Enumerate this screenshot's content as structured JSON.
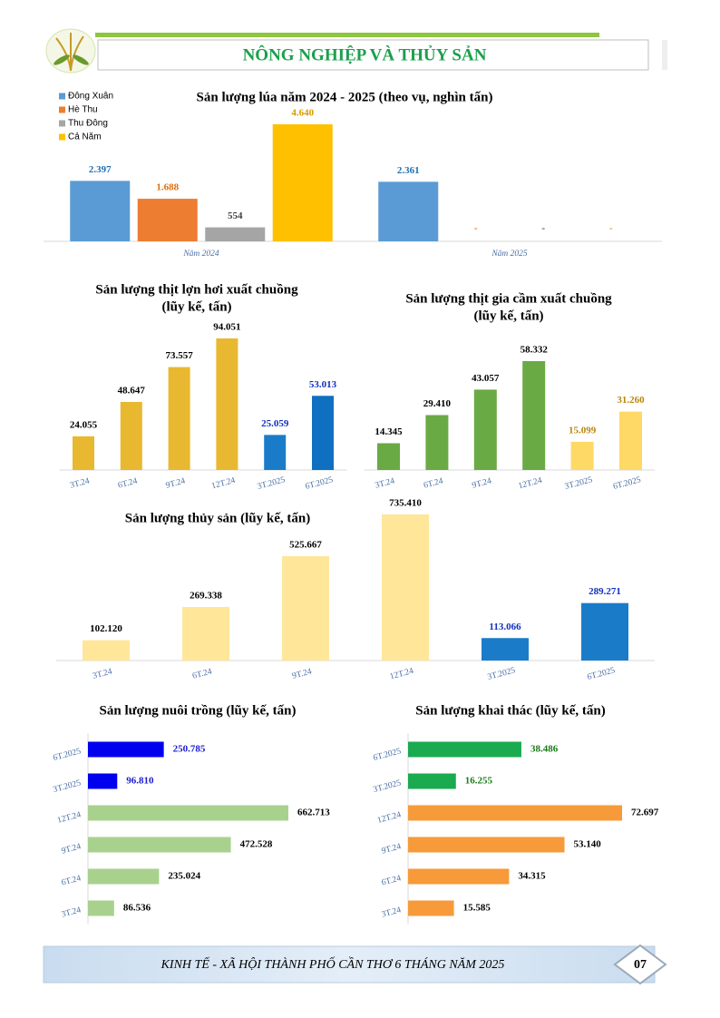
{
  "header": {
    "title": "NÔNG NGHIỆP VÀ THỦY SẢN"
  },
  "chart_data": [
    {
      "type": "grouped-bar",
      "title": "Sản lượng lúa năm 2024 - 2025 (theo vụ, nghìn tấn)",
      "categories": [
        "Năm 2024",
        "Năm 2025"
      ],
      "series": [
        {
          "name": "Đông Xuân",
          "color": "#5b9bd5",
          "label_color": "#1f6fb5",
          "values": [
            2397,
            2361
          ],
          "value_labels": [
            "2.397",
            "2.361"
          ]
        },
        {
          "name": "Hè Thu",
          "color": "#ed7d31",
          "label_color": "#e36c0a",
          "values": [
            1688,
            null
          ],
          "value_labels": [
            "1.688",
            "-"
          ]
        },
        {
          "name": "Thu Đông",
          "color": "#a5a5a5",
          "label_color": "#404040",
          "values": [
            554,
            null
          ],
          "value_labels": [
            "554",
            "-"
          ]
        },
        {
          "name": "Cả Năm",
          "color": "#ffc000",
          "label_color": "#d99a00",
          "values": [
            4640,
            null
          ],
          "value_labels": [
            "4.640",
            "-"
          ]
        }
      ]
    },
    {
      "type": "bar",
      "title": "Sản lượng thịt lợn hơi xuất chuồng",
      "subtitle": "(lũy kế, tấn)",
      "categories": [
        "3T.24",
        "6T.24",
        "9T.24",
        "12T.24",
        "3T.2025",
        "6T.2025"
      ],
      "values": [
        24055,
        48647,
        73557,
        94051,
        25059,
        53013
      ],
      "value_labels": [
        "24.055",
        "48.647",
        "73.557",
        "94.051",
        "25.059",
        "53.013"
      ],
      "colors": [
        "#e8b830",
        "#e8b830",
        "#e8b830",
        "#e8b830",
        "#1a7cc9",
        "#0f6fc0"
      ],
      "label_colors": [
        "#000000",
        "#000000",
        "#000000",
        "#000000",
        "#1030c0",
        "#1030c0"
      ]
    },
    {
      "type": "bar",
      "title": "Sản lượng thịt gia cầm xuất chuồng",
      "subtitle": "(lũy kế, tấn)",
      "categories": [
        "3T.24",
        "6T.24",
        "9T.24",
        "12T.24",
        "3T.2025",
        "6T.2025"
      ],
      "values": [
        14345,
        29410,
        43057,
        58332,
        15099,
        31260
      ],
      "value_labels": [
        "14.345",
        "29.410",
        "43.057",
        "58.332",
        "15.099",
        "31.260"
      ],
      "colors": [
        "#6aaa45",
        "#6aaa45",
        "#6aaa45",
        "#6aaa45",
        "#ffd966",
        "#ffd966"
      ],
      "label_colors": [
        "#000000",
        "#000000",
        "#000000",
        "#000000",
        "#b8860b",
        "#b8860b"
      ]
    },
    {
      "type": "bar",
      "title": "Sản lượng thủy sản (lũy kế, tấn)",
      "categories": [
        "3T.24",
        "6T.24",
        "9T.24",
        "12T.24",
        "3T.2025",
        "6T.2025"
      ],
      "values": [
        102120,
        269338,
        525667,
        735410,
        113066,
        289271
      ],
      "value_labels": [
        "102.120",
        "269.338",
        "525.667",
        "735.410",
        "113.066",
        "289.271"
      ],
      "colors": [
        "#ffe699",
        "#ffe699",
        "#ffe699",
        "#ffe699",
        "#1a7cc9",
        "#1a7cc9"
      ],
      "label_colors": [
        "#000000",
        "#000000",
        "#000000",
        "#000000",
        "#1030c0",
        "#1030c0"
      ]
    },
    {
      "type": "barh",
      "title": "Sản lượng nuôi trồng (lũy kế, tấn)",
      "categories": [
        "6T.2025",
        "3T.2025",
        "12T.24",
        "9T.24",
        "6T.24",
        "3T.24"
      ],
      "values": [
        250785,
        96810,
        662713,
        472528,
        235024,
        86536
      ],
      "value_labels": [
        "250.785",
        "96.810",
        "662.713",
        "472.528",
        "235.024",
        "86.536"
      ],
      "colors": [
        "#0000ee",
        "#0000ee",
        "#a9d18e",
        "#a9d18e",
        "#a9d18e",
        "#a9d18e"
      ],
      "label_colors": [
        "#1a1ad0",
        "#1a1ad0",
        "#000000",
        "#000000",
        "#000000",
        "#000000"
      ]
    },
    {
      "type": "barh",
      "title": "Sản lượng khai thác (lũy kế, tấn)",
      "categories": [
        "6T.2025",
        "3T.2025",
        "12T.24",
        "9T.24",
        "6T.24",
        "3T.24"
      ],
      "values": [
        38486,
        16255,
        72697,
        53140,
        34315,
        15585
      ],
      "value_labels": [
        "38.486",
        "16.255",
        "72.697",
        "53.140",
        "34.315",
        "15.585"
      ],
      "colors": [
        "#1aaa50",
        "#1aaa50",
        "#f79a3a",
        "#f79a3a",
        "#f79a3a",
        "#f79a3a"
      ],
      "label_colors": [
        "#1a7a1a",
        "#1a7a1a",
        "#000000",
        "#000000",
        "#000000",
        "#000000"
      ]
    }
  ],
  "footer": {
    "text": "KINH TẾ - XÃ HỘI THÀNH PHỐ CẦN THƠ 6 THÁNG NĂM 2025",
    "page": "07"
  }
}
